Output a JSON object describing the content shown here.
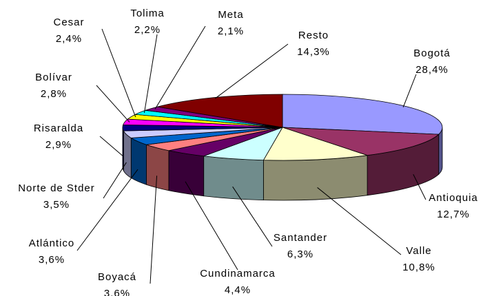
{
  "chart_data": {
    "type": "pie",
    "categories": [
      "Bogotá",
      "Antioquia",
      "Valle",
      "Santander",
      "Cundinamarca",
      "Boyacá",
      "Atlántico",
      "Norte de Stder",
      "Risaralda",
      "Bolívar",
      "Cesar",
      "Tolima",
      "Meta",
      "Resto"
    ],
    "values": [
      28.4,
      12.7,
      10.8,
      6.3,
      4.4,
      3.6,
      3.6,
      3.5,
      2.9,
      2.8,
      2.4,
      2.2,
      2.1,
      14.3
    ],
    "value_labels": [
      "28,4%",
      "12,7%",
      "10,8%",
      "6,3%",
      "4,4%",
      "3,6%",
      "3,6%",
      "3,5%",
      "2,9%",
      "2,8%",
      "2,4%",
      "2,2%",
      "2,1%",
      "14,3%"
    ],
    "colors": [
      "#9999ff",
      "#993366",
      "#ffffcc",
      "#ccffff",
      "#660066",
      "#ff8080",
      "#0066cc",
      "#ccccff",
      "#000080",
      "#ff00ff",
      "#ffff00",
      "#00ffff",
      "#800080",
      "#800000"
    ]
  }
}
